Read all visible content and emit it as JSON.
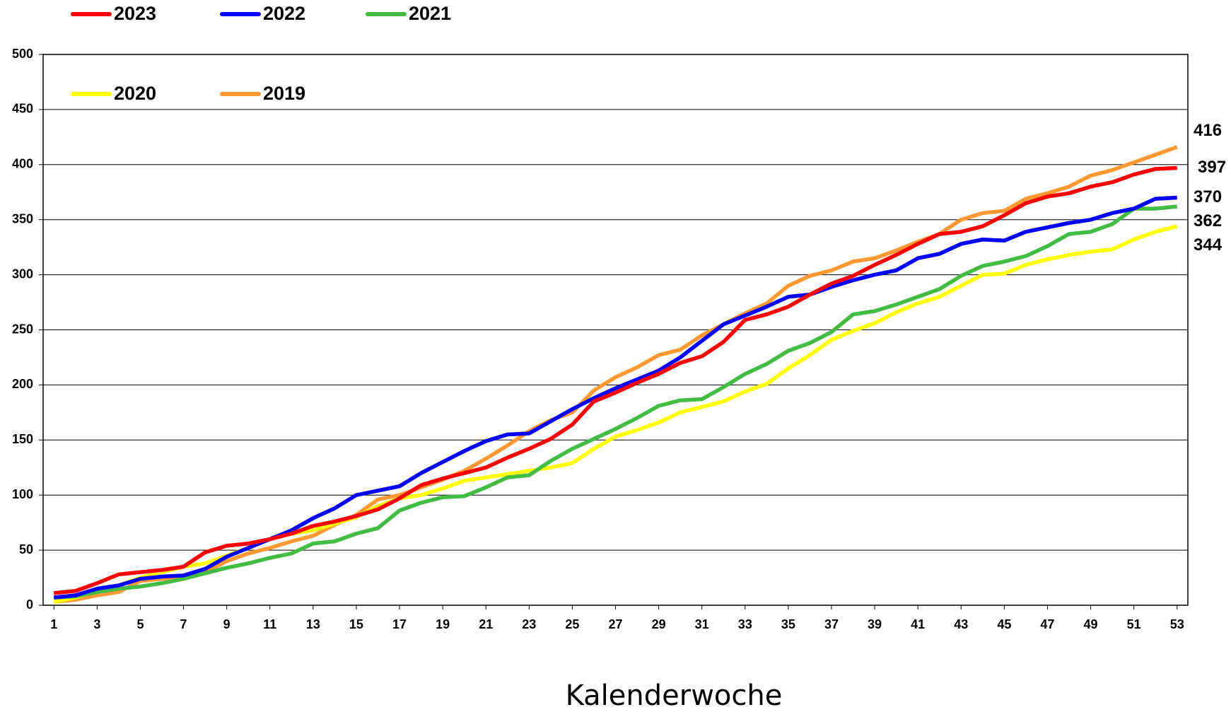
{
  "chart_data": {
    "type": "line",
    "x_label": "Kalenderwoche",
    "x": [
      1,
      2,
      3,
      4,
      5,
      6,
      7,
      8,
      9,
      10,
      11,
      12,
      13,
      14,
      15,
      16,
      17,
      18,
      19,
      20,
      21,
      22,
      23,
      24,
      25,
      26,
      27,
      28,
      29,
      30,
      31,
      32,
      33,
      34,
      35,
      36,
      37,
      38,
      39,
      40,
      41,
      42,
      43,
      44,
      45,
      46,
      47,
      48,
      49,
      50,
      51,
      52,
      53
    ],
    "xlim": [
      0.5,
      53.5
    ],
    "xticks": [
      1,
      3,
      5,
      7,
      9,
      11,
      13,
      15,
      17,
      19,
      21,
      23,
      25,
      27,
      29,
      31,
      33,
      35,
      37,
      39,
      41,
      43,
      45,
      47,
      49,
      51,
      53
    ],
    "ylim": [
      0,
      500
    ],
    "yticks": [
      0,
      50,
      100,
      150,
      200,
      250,
      300,
      350,
      400,
      450,
      500
    ],
    "grid": true,
    "series": [
      {
        "name": "2023",
        "color": "#ff0000",
        "values": [
          11,
          13,
          20,
          28,
          30,
          32,
          35,
          48,
          54,
          56,
          60,
          65,
          72,
          76,
          81,
          87,
          97,
          109,
          115,
          120,
          125,
          134,
          142,
          151,
          164,
          185,
          193,
          202,
          210,
          220,
          226,
          239,
          259,
          264,
          271,
          282,
          292,
          299,
          309,
          318,
          328,
          337,
          339,
          344,
          354,
          365,
          371,
          374,
          380,
          384,
          391,
          396,
          397
        ]
      },
      {
        "name": "2022",
        "color": "#0000ff",
        "values": [
          7,
          9,
          15,
          18,
          24,
          26,
          27,
          33,
          44,
          52,
          60,
          68,
          79,
          88,
          100,
          104,
          108,
          120,
          130,
          140,
          149,
          155,
          156,
          167,
          178,
          188,
          197,
          205,
          213,
          225,
          240,
          255,
          263,
          271,
          280,
          282,
          289,
          295,
          300,
          304,
          315,
          319,
          328,
          332,
          331,
          339,
          343,
          347,
          350,
          356,
          360,
          369,
          370
        ]
      },
      {
        "name": "2021",
        "color": "#44bb44",
        "values": [
          7,
          8,
          12,
          15,
          17,
          20,
          24,
          29,
          34,
          38,
          43,
          47,
          56,
          58,
          65,
          70,
          86,
          93,
          98,
          99,
          107,
          116,
          118,
          131,
          142,
          151,
          160,
          170,
          181,
          186,
          187,
          198,
          210,
          219,
          231,
          238,
          248,
          264,
          267,
          273,
          280,
          287,
          299,
          308,
          312,
          317,
          326,
          337,
          339,
          346,
          360,
          360,
          362
        ]
      },
      {
        "name": "2020",
        "color": "#ffff00",
        "values": [
          3,
          7,
          13,
          18,
          25,
          30,
          35,
          38,
          45,
          52,
          60,
          65,
          68,
          74,
          80,
          90,
          97,
          100,
          106,
          113,
          116,
          119,
          122,
          125,
          129,
          142,
          153,
          159,
          166,
          175,
          180,
          185,
          194,
          201,
          215,
          227,
          241,
          249,
          256,
          266,
          274,
          280,
          290,
          300,
          301,
          309,
          314,
          318,
          321,
          323,
          332,
          339,
          344
        ]
      },
      {
        "name": "2019",
        "color": "#ff9933",
        "values": [
          3,
          5,
          9,
          12,
          22,
          24,
          25,
          30,
          40,
          47,
          52,
          58,
          63,
          73,
          82,
          96,
          100,
          107,
          114,
          122,
          133,
          145,
          158,
          168,
          175,
          195,
          207,
          216,
          227,
          232,
          245,
          255,
          265,
          274,
          290,
          299,
          304,
          312,
          315,
          322,
          330,
          337,
          350,
          356,
          358,
          369,
          374,
          380,
          390,
          395,
          402,
          409,
          416
        ]
      }
    ]
  }
}
